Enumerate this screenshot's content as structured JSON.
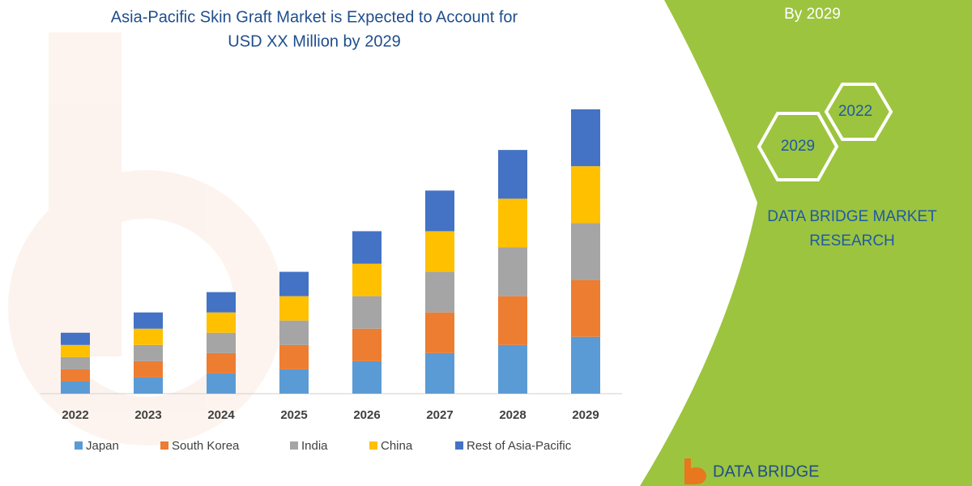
{
  "chart_data": {
    "type": "bar",
    "stacked": true,
    "title": [
      "Asia-Pacific Skin Graft Market is Expected to Account for",
      "USD XX Million by 2029"
    ],
    "categories": [
      "2022",
      "2023",
      "2024",
      "2025",
      "2026",
      "2027",
      "2028",
      "2029"
    ],
    "series": [
      {
        "name": "Japan",
        "color": "#5b9bd5",
        "values": [
          15,
          20,
          25,
          30,
          40,
          50,
          60,
          70
        ]
      },
      {
        "name": "South Korea",
        "color": "#ed7d31",
        "values": [
          15,
          20,
          25,
          30,
          40,
          50,
          60,
          70
        ]
      },
      {
        "name": "India",
        "color": "#a5a5a5",
        "values": [
          15,
          20,
          25,
          30,
          40,
          50,
          60,
          70
        ]
      },
      {
        "name": "China",
        "color": "#ffc000",
        "values": [
          15,
          20,
          25,
          30,
          40,
          50,
          60,
          70
        ]
      },
      {
        "name": "Rest of Asia-Pacific",
        "color": "#4472c4",
        "values": [
          15,
          20,
          25,
          30,
          40,
          50,
          60,
          70
        ]
      }
    ]
  },
  "side_panel": {
    "heading": "By 2029",
    "hexagons": [
      "2022",
      "2029"
    ],
    "brand": [
      "DATA BRIDGE MARKET",
      "RESEARCH"
    ],
    "logo": "DATA BRIDGE"
  }
}
